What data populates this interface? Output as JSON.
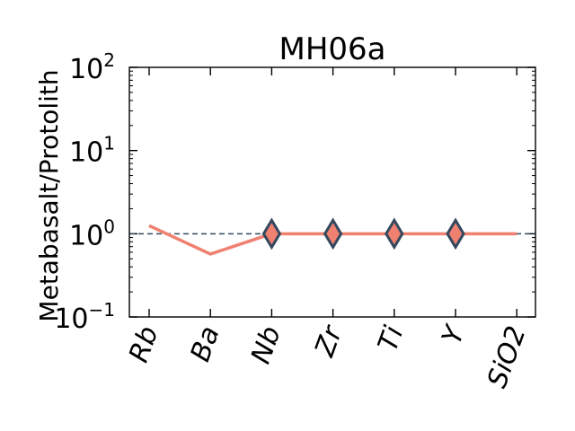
{
  "chart_data": {
    "type": "line",
    "title": "MH06a",
    "xlabel": "",
    "ylabel": "Metabasalt/Protolith",
    "yscale": "log",
    "ylim": [
      0.1,
      100
    ],
    "ytick_labels": [
      {
        "base": "10",
        "exp": "−1"
      },
      {
        "base": "10",
        "exp": "0"
      },
      {
        "base": "10",
        "exp": "1"
      },
      {
        "base": "10",
        "exp": "2"
      }
    ],
    "categories": [
      "Rb",
      "Ba",
      "Nb",
      "Zr",
      "Ti",
      "Y",
      "SiO2"
    ],
    "series": [
      {
        "values": [
          1.25,
          0.57,
          1.0,
          1.0,
          1.0,
          1.0,
          1.0
        ],
        "color": "#f08070",
        "line": "solid"
      },
      {
        "values": [
          null,
          null,
          1.0,
          1.0,
          1.0,
          1.0,
          null
        ],
        "marker": "diamond",
        "color": "#f08070",
        "edgecolor": "#34495e",
        "line": "none"
      }
    ],
    "reference_line": {
      "y": 1,
      "style": "dashed",
      "color": "#34495e"
    },
    "grid": false,
    "legend": "none"
  }
}
